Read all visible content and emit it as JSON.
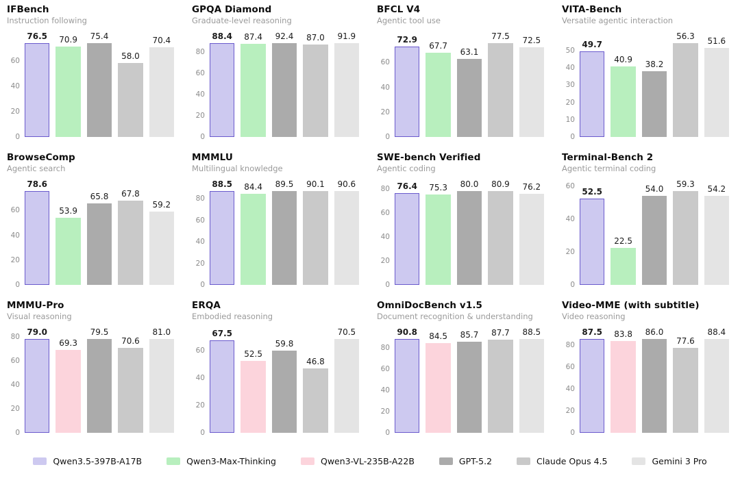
{
  "legend": [
    {
      "key": "qwen35",
      "label": "Qwen3.5-397B-A17B",
      "color": "#cdc9f0",
      "bar_border": "#6a5acd"
    },
    {
      "key": "qwen3max",
      "label": "Qwen3-Max-Thinking",
      "color": "#b8efbe"
    },
    {
      "key": "qwen3vl",
      "label": "Qwen3-VL-235B-A22B",
      "color": "#fcd4dc"
    },
    {
      "key": "gpt52",
      "label": "GPT-5.2",
      "color": "#ababab"
    },
    {
      "key": "claude",
      "label": "Claude Opus 4.5",
      "color": "#c9c9c9"
    },
    {
      "key": "gemini",
      "label": "Gemini 3 Pro",
      "color": "#e4e4e4"
    }
  ],
  "chart_data": [
    {
      "type": "bar",
      "title": "IFBench",
      "subtitle": "Instruction following",
      "categories": [
        "Qwen3.5-397B-A17B",
        "Qwen3-Max-Thinking",
        "GPT-5.2",
        "Claude Opus 4.5",
        "Gemini 3 Pro"
      ],
      "series_keys": [
        "qwen35",
        "qwen3max",
        "gpt52",
        "claude",
        "gemini"
      ],
      "values": [
        76.5,
        70.9,
        75.4,
        58.0,
        70.4
      ],
      "yticks": [
        0,
        20,
        40,
        60
      ],
      "ylim": [
        0,
        83
      ],
      "grid": false,
      "highlight_index": 0
    },
    {
      "type": "bar",
      "title": "GPQA Diamond",
      "subtitle": "Graduate-level reasoning",
      "categories": [
        "Qwen3.5-397B-A17B",
        "Qwen3-Max-Thinking",
        "GPT-5.2",
        "Claude Opus 4.5",
        "Gemini 3 Pro"
      ],
      "series_keys": [
        "qwen35",
        "qwen3max",
        "gpt52",
        "claude",
        "gemini"
      ],
      "values": [
        88.4,
        87.4,
        92.4,
        87.0,
        91.9
      ],
      "yticks": [
        0,
        20,
        40,
        60,
        80
      ],
      "ylim": [
        0,
        99
      ],
      "grid": false,
      "highlight_index": 0
    },
    {
      "type": "bar",
      "title": "BFCL V4",
      "subtitle": "Agentic tool use",
      "categories": [
        "Qwen3.5-397B-A17B",
        "Qwen3-Max-Thinking",
        "GPT-5.2",
        "Claude Opus 4.5",
        "Gemini 3 Pro"
      ],
      "series_keys": [
        "qwen35",
        "qwen3max",
        "gpt52",
        "claude",
        "gemini"
      ],
      "values": [
        72.9,
        67.7,
        63.1,
        77.5,
        72.5
      ],
      "yticks": [
        0,
        20,
        40,
        60
      ],
      "ylim": [
        0,
        85
      ],
      "grid": false,
      "highlight_index": 0
    },
    {
      "type": "bar",
      "title": "VITA-Bench",
      "subtitle": "Versatile agentic interaction",
      "categories": [
        "Qwen3.5-397B-A17B",
        "Qwen3-Max-Thinking",
        "GPT-5.2",
        "Claude Opus 4.5",
        "Gemini 3 Pro"
      ],
      "series_keys": [
        "qwen35",
        "qwen3max",
        "gpt52",
        "claude",
        "gemini"
      ],
      "values": [
        49.7,
        40.9,
        38.2,
        56.3,
        51.6
      ],
      "yticks": [
        0,
        10,
        20,
        30,
        40,
        50
      ],
      "ylim": [
        0,
        61
      ],
      "grid": false,
      "highlight_index": 0
    },
    {
      "type": "bar",
      "title": "BrowseComp",
      "subtitle": "Agentic search",
      "categories": [
        "Qwen3.5-397B-A17B",
        "Qwen3-Max-Thinking",
        "GPT-5.2",
        "Claude Opus 4.5",
        "Gemini 3 Pro"
      ],
      "series_keys": [
        "qwen35",
        "qwen3max",
        "gpt52",
        "claude",
        "gemini"
      ],
      "values": [
        78.6,
        53.9,
        65.8,
        67.8,
        59.2
      ],
      "yticks": [
        0,
        20,
        40,
        60
      ],
      "ylim": [
        0,
        85
      ],
      "grid": false,
      "highlight_index": 0
    },
    {
      "type": "bar",
      "title": "MMMLU",
      "subtitle": "Multilingual knowledge",
      "categories": [
        "Qwen3.5-397B-A17B",
        "Qwen3-Max-Thinking",
        "GPT-5.2",
        "Claude Opus 4.5",
        "Gemini 3 Pro"
      ],
      "series_keys": [
        "qwen35",
        "qwen3max",
        "gpt52",
        "claude",
        "gemini"
      ],
      "values": [
        88.5,
        84.4,
        89.5,
        90.1,
        90.6
      ],
      "yticks": [
        0,
        20,
        40,
        60,
        80
      ],
      "ylim": [
        0,
        98
      ],
      "grid": false,
      "highlight_index": 0
    },
    {
      "type": "bar",
      "title": "SWE-bench Verified",
      "subtitle": "Agentic coding",
      "categories": [
        "Qwen3.5-397B-A17B",
        "Qwen3-Max-Thinking",
        "GPT-5.2",
        "Claude Opus 4.5",
        "Gemini 3 Pro"
      ],
      "series_keys": [
        "qwen35",
        "qwen3max",
        "gpt52",
        "claude",
        "gemini"
      ],
      "values": [
        76.4,
        75.3,
        80.0,
        80.9,
        76.2
      ],
      "yticks": [
        0,
        20,
        40,
        60,
        80
      ],
      "ylim": [
        0,
        88
      ],
      "grid": false,
      "highlight_index": 0
    },
    {
      "type": "bar",
      "title": "Terminal-Bench 2",
      "subtitle": "Agentic terminal coding",
      "categories": [
        "Qwen3.5-397B-A17B",
        "Qwen3-Max-Thinking",
        "GPT-5.2",
        "Claude Opus 4.5",
        "Gemini 3 Pro"
      ],
      "series_keys": [
        "qwen35",
        "qwen3max",
        "gpt52",
        "claude",
        "gemini"
      ],
      "values": [
        52.5,
        22.5,
        54.0,
        59.3,
        54.2
      ],
      "yticks": [
        0,
        20,
        40,
        60
      ],
      "ylim": [
        0,
        64
      ],
      "grid": false,
      "highlight_index": 0
    },
    {
      "type": "bar",
      "title": "MMMU-Pro",
      "subtitle": "Visual reasoning",
      "categories": [
        "Qwen3.5-397B-A17B",
        "Qwen3-VL-235B-A22B",
        "GPT-5.2",
        "Claude Opus 4.5",
        "Gemini 3 Pro"
      ],
      "series_keys": [
        "qwen35",
        "qwen3vl",
        "gpt52",
        "claude",
        "gemini"
      ],
      "values": [
        79.0,
        69.3,
        79.5,
        70.6,
        81.0
      ],
      "yticks": [
        0,
        20,
        40,
        60,
        80
      ],
      "ylim": [
        0,
        88
      ],
      "grid": false,
      "highlight_index": 0
    },
    {
      "type": "bar",
      "title": "ERQA",
      "subtitle": "Embodied reasoning",
      "categories": [
        "Qwen3.5-397B-A17B",
        "Qwen3-VL-235B-A22B",
        "GPT-5.2",
        "Claude Opus 4.5",
        "Gemini 3 Pro"
      ],
      "series_keys": [
        "qwen35",
        "qwen3vl",
        "gpt52",
        "claude",
        "gemini"
      ],
      "values": [
        67.5,
        52.5,
        59.8,
        46.8,
        70.5
      ],
      "yticks": [
        0,
        20,
        40,
        60
      ],
      "ylim": [
        0,
        77
      ],
      "grid": false,
      "highlight_index": 0
    },
    {
      "type": "bar",
      "title": "OmniDocBench v1.5",
      "subtitle": "Document recognition & understanding",
      "categories": [
        "Qwen3.5-397B-A17B",
        "Qwen3-VL-235B-A22B",
        "GPT-5.2",
        "Claude Opus 4.5",
        "Gemini 3 Pro"
      ],
      "series_keys": [
        "qwen35",
        "qwen3vl",
        "gpt52",
        "claude",
        "gemini"
      ],
      "values": [
        90.8,
        84.5,
        85.7,
        87.7,
        88.5
      ],
      "yticks": [
        0,
        20,
        40,
        60,
        80
      ],
      "ylim": [
        0,
        99
      ],
      "grid": false,
      "highlight_index": 0
    },
    {
      "type": "bar",
      "title": "Video-MME (with subtitle)",
      "subtitle": "Video reasoning",
      "categories": [
        "Qwen3.5-397B-A17B",
        "Qwen3-VL-235B-A22B",
        "GPT-5.2",
        "Claude Opus 4.5",
        "Gemini 3 Pro"
      ],
      "series_keys": [
        "qwen35",
        "qwen3vl",
        "gpt52",
        "claude",
        "gemini"
      ],
      "values": [
        87.5,
        83.8,
        86.0,
        77.6,
        88.4
      ],
      "yticks": [
        0,
        20,
        40,
        60,
        80
      ],
      "ylim": [
        0,
        96
      ],
      "grid": false,
      "highlight_index": 0
    }
  ]
}
